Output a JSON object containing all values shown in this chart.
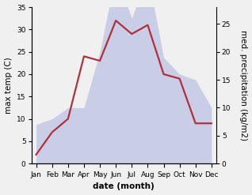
{
  "months": [
    "Jan",
    "Feb",
    "Mar",
    "Apr",
    "May",
    "Jun",
    "Jul",
    "Aug",
    "Sep",
    "Oct",
    "Nov",
    "Dec"
  ],
  "temperature": [
    2,
    7,
    10,
    24,
    23,
    32,
    29,
    31,
    20,
    19,
    9,
    9
  ],
  "precipitation": [
    7,
    8,
    10,
    10,
    20,
    34,
    26,
    34,
    19,
    16,
    15,
    10
  ],
  "temp_color": "#b03040",
  "precip_color": "#b0b8e0",
  "precip_alpha": 0.6,
  "temp_ylim": [
    0,
    35
  ],
  "precip_ylim": [
    0,
    28
  ],
  "temp_yticks": [
    0,
    5,
    10,
    15,
    20,
    25,
    30,
    35
  ],
  "precip_yticks": [
    0,
    5,
    10,
    15,
    20,
    25
  ],
  "ylabel_left": "max temp (C)",
  "ylabel_right": "med. precipitation (kg/m2)",
  "xlabel": "date (month)",
  "background_color": "#f0f0f0",
  "label_fontsize": 7.5,
  "tick_fontsize": 6.5
}
